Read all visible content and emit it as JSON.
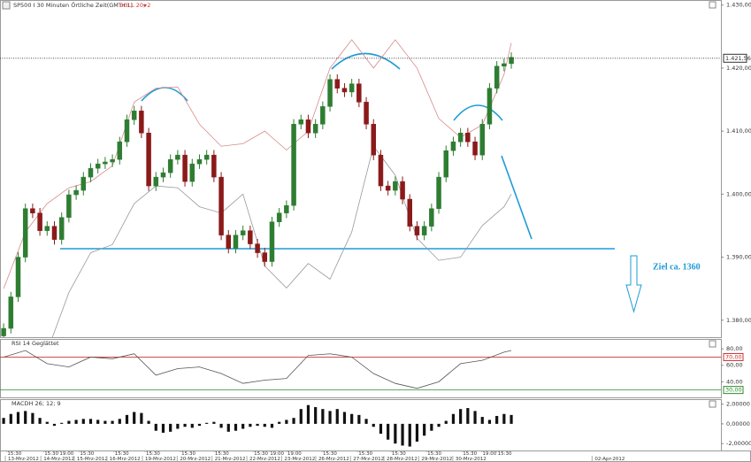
{
  "chart_data": [
    {
      "type": "candlestick",
      "title": "SP500 I 30 Minuten Örtliche Zeit(GMT+1)",
      "up_color": "#2e7d32",
      "down_color": "#8b1a1a",
      "xlim": [
        -0.5,
        98.9
      ],
      "ylim": [
        1377.3,
        1430.8
      ],
      "yticks": [
        {
          "value": 1430,
          "label": "1.430,00"
        },
        {
          "value": 1420,
          "label": "1.420,00"
        },
        {
          "value": 1410,
          "label": "1.410,00"
        },
        {
          "value": 1400,
          "label": "1.400,00"
        },
        {
          "value": 1390,
          "label": "1.390,00"
        },
        {
          "value": 1380,
          "label": "1.380,00"
        }
      ],
      "grid": false,
      "last_price": 1421.56,
      "last_price_label": "1.421,56",
      "annotations": [
        "Ziel ca. 1360"
      ],
      "x": [
        0,
        1,
        2,
        3,
        4,
        5,
        6,
        7,
        8,
        9,
        10,
        11,
        12,
        13,
        14,
        15,
        16,
        17,
        18,
        19,
        20,
        21,
        22,
        23,
        24,
        25,
        26,
        27,
        28,
        29,
        30,
        31,
        32,
        33,
        34,
        35,
        36,
        37,
        38,
        39,
        40,
        41,
        42,
        43,
        44,
        45,
        46,
        47,
        48,
        49,
        50,
        51,
        52,
        53,
        54,
        55,
        56,
        57,
        58,
        59,
        60,
        61,
        62,
        63,
        64,
        65,
        66,
        67,
        68,
        69,
        70
      ],
      "open": [
        1377.5,
        1378.7,
        1383.7,
        1390.0,
        1397.7,
        1397.0,
        1394.2,
        1394.9,
        1392.8,
        1396.3,
        1399.9,
        1400.6,
        1402.7,
        1404.1,
        1404.8,
        1405.1,
        1405.5,
        1408.3,
        1411.8,
        1413.2,
        1409.7,
        1401.3,
        1402.7,
        1403.4,
        1405.5,
        1406.2,
        1402.0,
        1404.8,
        1405.5,
        1406.2,
        1402.7,
        1393.5,
        1391.4,
        1393.5,
        1394.2,
        1392.1,
        1390.7,
        1389.3,
        1395.6,
        1397.0,
        1398.2,
        1411.1,
        1411.8,
        1409.7,
        1411.1,
        1413.9,
        1418.2,
        1416.8,
        1416.2,
        1417.5,
        1414.6,
        1411.1,
        1406.2,
        1401.3,
        1400.6,
        1402.0,
        1399.2,
        1394.9,
        1393.5,
        1394.9,
        1397.7,
        1402.7,
        1406.9,
        1408.3,
        1409.7,
        1408.3,
        1406.2,
        1411.1,
        1416.8,
        1420.3,
        1420.7
      ],
      "high": [
        1379.5,
        1384.5,
        1390.8,
        1398.5,
        1398.5,
        1397.8,
        1395.7,
        1395.7,
        1397.1,
        1400.7,
        1401.4,
        1403.5,
        1404.9,
        1405.6,
        1405.9,
        1406.3,
        1409.1,
        1412.6,
        1414.0,
        1414.0,
        1410.5,
        1403.5,
        1404.2,
        1406.3,
        1407.0,
        1407.0,
        1405.6,
        1406.3,
        1407.0,
        1407.0,
        1403.5,
        1394.3,
        1394.3,
        1395.0,
        1395.0,
        1392.9,
        1391.5,
        1396.4,
        1397.8,
        1399.0,
        1411.9,
        1412.6,
        1412.6,
        1411.9,
        1414.7,
        1419.0,
        1419.0,
        1417.6,
        1418.3,
        1418.3,
        1415.4,
        1411.9,
        1407.0,
        1402.1,
        1402.8,
        1402.8,
        1400.0,
        1395.7,
        1395.7,
        1398.5,
        1403.5,
        1407.7,
        1409.1,
        1410.5,
        1410.5,
        1409.1,
        1411.9,
        1417.6,
        1421.1,
        1421.5,
        1422.5
      ],
      "low": [
        1376.7,
        1377.9,
        1382.9,
        1389.2,
        1396.2,
        1393.4,
        1393.4,
        1392.0,
        1392.0,
        1395.5,
        1399.1,
        1399.8,
        1401.9,
        1403.3,
        1404.0,
        1404.3,
        1404.7,
        1407.5,
        1411.0,
        1408.9,
        1400.5,
        1400.5,
        1401.9,
        1402.6,
        1404.7,
        1401.2,
        1401.2,
        1404.0,
        1404.7,
        1401.9,
        1392.7,
        1390.6,
        1390.6,
        1392.7,
        1391.3,
        1389.9,
        1388.5,
        1388.5,
        1394.8,
        1396.2,
        1397.4,
        1410.3,
        1408.9,
        1408.9,
        1410.3,
        1413.1,
        1416.0,
        1415.4,
        1415.4,
        1413.8,
        1410.3,
        1405.4,
        1400.5,
        1399.8,
        1399.8,
        1398.4,
        1394.1,
        1392.7,
        1392.7,
        1394.1,
        1396.9,
        1401.9,
        1406.1,
        1407.5,
        1407.5,
        1405.4,
        1405.4,
        1410.3,
        1416.0,
        1419.5,
        1419.9
      ],
      "close": [
        1378.7,
        1383.7,
        1390.0,
        1397.7,
        1397.0,
        1394.2,
        1394.9,
        1392.8,
        1396.3,
        1399.9,
        1400.6,
        1402.7,
        1404.1,
        1404.8,
        1405.1,
        1405.5,
        1408.3,
        1411.8,
        1413.2,
        1409.7,
        1401.3,
        1402.7,
        1403.4,
        1405.5,
        1406.2,
        1402.0,
        1404.8,
        1405.5,
        1406.2,
        1402.7,
        1393.5,
        1391.4,
        1393.5,
        1394.2,
        1392.1,
        1390.7,
        1389.3,
        1395.6,
        1397.0,
        1398.2,
        1411.1,
        1411.8,
        1409.7,
        1411.1,
        1413.9,
        1418.2,
        1416.8,
        1416.2,
        1417.5,
        1414.6,
        1411.1,
        1406.2,
        1401.3,
        1400.6,
        1402.0,
        1399.2,
        1394.9,
        1393.5,
        1394.9,
        1397.7,
        1402.7,
        1406.9,
        1408.3,
        1409.7,
        1408.3,
        1406.2,
        1411.1,
        1416.8,
        1420.3,
        1420.7,
        1421.7
      ],
      "overlay": {
        "name": "BOLL 20; 2",
        "color": "#d03030",
        "upper_color": "#d88a8a",
        "lower_color": "#9a9a9a",
        "x": [
          0,
          3,
          6,
          9,
          12,
          15,
          18,
          21,
          24,
          27,
          30,
          33,
          36,
          39,
          42,
          45,
          48,
          51,
          54,
          57,
          60,
          63,
          66,
          69,
          70
        ],
        "upper": [
          1385,
          1394,
          1398.5,
          1401,
          1402,
          1404.5,
          1414.6,
          1416.8,
          1417,
          1411.1,
          1407.6,
          1408,
          1410,
          1407,
          1410,
          1420,
          1424.5,
          1420,
          1424.5,
          1420,
          1412,
          1409,
          1411,
          1419,
          1424
        ],
        "lower": [
          null,
          null,
          1375,
          1384.4,
          1390.7,
          1392,
          1398.5,
          1401.3,
          1401,
          1398,
          1397,
          1400,
          1388.6,
          1385.1,
          1389,
          1386.5,
          1394,
          1407.6,
          1403,
          1393,
          1389.5,
          1390,
          1395,
          1398,
          1400
        ]
      }
    },
    {
      "type": "line",
      "title": "RSI 14 Geglättet",
      "color": "#555555",
      "xlim": [
        -0.5,
        98.9
      ],
      "ylim": [
        21,
        92
      ],
      "yticks": [
        {
          "value": 80,
          "label": "80,00"
        },
        {
          "value": 60,
          "label": "60,00"
        },
        {
          "value": 40,
          "label": "40,00"
        }
      ],
      "levels": [
        {
          "value": 70,
          "label": "70,00",
          "color": "#d03030"
        },
        {
          "value": 30,
          "label": "30,00",
          "color": "#2e8b2e"
        }
      ],
      "x": [
        0,
        3,
        6,
        9,
        12,
        15,
        18,
        21,
        24,
        27,
        30,
        33,
        36,
        39,
        42,
        45,
        48,
        51,
        54,
        57,
        60,
        63,
        66,
        69,
        70
      ],
      "values": [
        70,
        78,
        62,
        58,
        70,
        68,
        74,
        48,
        56,
        58,
        50,
        38,
        42,
        44,
        72,
        74,
        70,
        50,
        38,
        32,
        40,
        62,
        66,
        76,
        78
      ]
    },
    {
      "type": "histogram_bar",
      "title": "MACDH 26; 12; 9",
      "color": "#111111",
      "xlim": [
        -0.5,
        98.9
      ],
      "ylim": [
        -2.7,
        2.5
      ],
      "yticks": [
        {
          "value": 2,
          "label": "2,00000"
        },
        {
          "value": 0,
          "label": "0,00000"
        },
        {
          "value": -2,
          "label": "-2,00000"
        }
      ],
      "x": [
        0,
        1,
        2,
        3,
        4,
        5,
        6,
        7,
        8,
        9,
        10,
        11,
        12,
        13,
        14,
        15,
        16,
        17,
        18,
        19,
        20,
        21,
        22,
        23,
        24,
        25,
        26,
        27,
        28,
        29,
        30,
        31,
        32,
        33,
        34,
        35,
        36,
        37,
        38,
        39,
        40,
        41,
        42,
        43,
        44,
        45,
        46,
        47,
        48,
        49,
        50,
        51,
        52,
        53,
        54,
        55,
        56,
        57,
        58,
        59,
        60,
        61,
        62,
        63,
        64,
        65,
        66,
        67,
        68,
        69,
        70
      ],
      "values": [
        0.6,
        1.0,
        1.2,
        1.3,
        1.1,
        0.6,
        0.2,
        -0.2,
        0.1,
        0.3,
        0.4,
        0.5,
        0.5,
        0.4,
        0.3,
        0.3,
        0.5,
        0.9,
        1.2,
        1.1,
        0.3,
        -0.7,
        -0.9,
        -0.8,
        -0.5,
        -0.3,
        -0.4,
        -0.2,
        0.1,
        0.2,
        -0.4,
        -0.8,
        -0.7,
        -0.5,
        -0.3,
        -0.2,
        -0.3,
        -0.4,
        0.2,
        0.4,
        0.6,
        1.5,
        1.9,
        1.7,
        1.5,
        1.3,
        1.5,
        1.2,
        1.0,
        0.9,
        0.5,
        -0.3,
        -1.0,
        -1.6,
        -2.0,
        -2.2,
        -2.3,
        -1.8,
        -1.2,
        -0.7,
        -0.3,
        0.3,
        1.0,
        1.5,
        1.6,
        1.3,
        0.7,
        0.4,
        0.8,
        1.0,
        0.9
      ],
      "xticks": [
        {
          "value": 0.6,
          "label": "13-Mrz-2012"
        },
        {
          "value": 5.5,
          "label": "14-Mrz-2012"
        },
        {
          "value": 10.1,
          "label": "15-Mrz-2012"
        },
        {
          "value": 14.6,
          "label": "16-Mrz-2012"
        },
        {
          "value": 19.5,
          "label": "19-Mrz-2012"
        },
        {
          "value": 24.3,
          "label": "20-Mrz-2012"
        },
        {
          "value": 29.1,
          "label": "21-Mrz-2012"
        },
        {
          "value": 33.9,
          "label": "22-Mrz-2012"
        },
        {
          "value": 38.7,
          "label": "23-Mrz-2012"
        },
        {
          "value": 43.4,
          "label": "26-Mrz-2012"
        },
        {
          "value": 48.2,
          "label": "27-Mrz-2012"
        },
        {
          "value": 52.8,
          "label": "28-Mrz-2012"
        },
        {
          "value": 57.6,
          "label": "29-Mrz-2012"
        },
        {
          "value": 62.3,
          "label": "30-Mrz-2012"
        },
        {
          "value": 81.5,
          "label": "02-Apr-2012"
        }
      ],
      "minor_xticks": [
        {
          "value": 0.4,
          "label": "15:30"
        },
        {
          "value": 5.5,
          "label": "15:30"
        },
        {
          "value": 7.6,
          "label": "19:00"
        },
        {
          "value": 10.4,
          "label": "15:30"
        },
        {
          "value": 15.2,
          "label": "15:30"
        },
        {
          "value": 19.5,
          "label": "15:30"
        },
        {
          "value": 24.4,
          "label": "15:30"
        },
        {
          "value": 29,
          "label": "15:30"
        },
        {
          "value": 34.4,
          "label": "15:30"
        },
        {
          "value": 36.6,
          "label": "19:00"
        },
        {
          "value": 39,
          "label": "19:00"
        },
        {
          "value": 43.9,
          "label": "15:30"
        },
        {
          "value": 48.8,
          "label": "15:30"
        },
        {
          "value": 53.4,
          "label": "15:30"
        },
        {
          "value": 58.3,
          "label": "15:30"
        },
        {
          "value": 63.2,
          "label": "15:30"
        },
        {
          "value": 65.9,
          "label": "19:00"
        },
        {
          "value": 68,
          "label": "15:30"
        }
      ]
    }
  ]
}
